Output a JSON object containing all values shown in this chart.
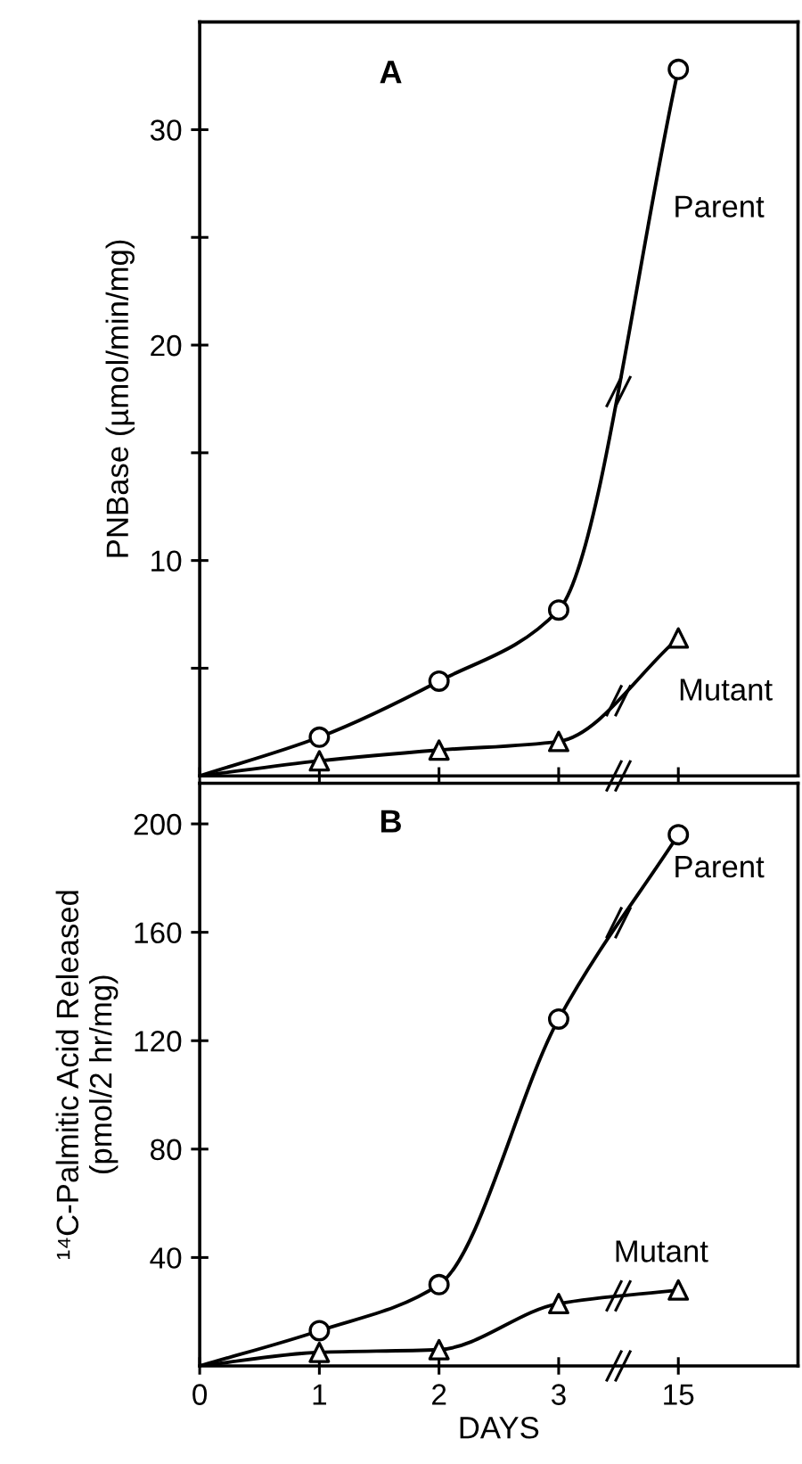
{
  "chart_data": [
    {
      "type": "line",
      "annotations": [
        "A"
      ],
      "ylabel": "PNBase (µmol/min/mg)",
      "categories": [
        "0",
        "1",
        "2",
        "3",
        "15"
      ],
      "ylim": [
        0,
        35
      ],
      "yticks": [
        {
          "value": 5,
          "label": null
        },
        10,
        {
          "value": 15,
          "label": null
        },
        20,
        {
          "value": 25,
          "label": null
        },
        30
      ],
      "tick_labels": "y",
      "grid": false,
      "series": [
        {
          "type": "line",
          "name": "Parent",
          "color": "#000000",
          "values": [
            0,
            1.8,
            4.4,
            7.7,
            32.8
          ]
        },
        {
          "type": "scatter",
          "color": "#000000",
          "marker": "circle",
          "x": [
            "1",
            "2",
            "3",
            "15"
          ],
          "values": [
            1.8,
            4.4,
            7.7,
            32.8
          ]
        },
        {
          "type": "line",
          "name": "Mutant",
          "color": "#000000",
          "values": [
            0,
            0.7,
            1.2,
            1.6,
            6.4
          ]
        },
        {
          "type": "scatter",
          "color": "#000000",
          "marker": "triangle",
          "x": [
            "1",
            "2",
            "3",
            "15"
          ],
          "values": [
            0.7,
            1.2,
            1.6,
            6.4
          ]
        }
      ]
    },
    {
      "type": "line",
      "annotations": [
        "B"
      ],
      "xlabel": "DAYS",
      "ylabel": "¹⁴C-Palmitic Acid Released\n(pmol/2 hr/mg)",
      "categories": [
        "0",
        "1",
        "2",
        "3",
        "15"
      ],
      "ylim": [
        0,
        215
      ],
      "yticks": [
        40,
        80,
        120,
        160,
        200
      ],
      "grid": false,
      "series": [
        {
          "type": "line",
          "name": "Parent",
          "color": "#000000",
          "values": [
            0,
            13,
            30,
            128,
            196
          ]
        },
        {
          "type": "scatter",
          "color": "#000000",
          "marker": "circle",
          "x": [
            "1",
            "2",
            "3",
            "15"
          ],
          "values": [
            13,
            30,
            128,
            196
          ]
        },
        {
          "type": "line",
          "name": "Mutant",
          "color": "#000000",
          "values": [
            0,
            5,
            6,
            23,
            28
          ]
        },
        {
          "type": "scatter",
          "color": "#000000",
          "marker": "triangle",
          "x": [
            "1",
            "2",
            "3",
            "15"
          ],
          "values": [
            5,
            6,
            23,
            28
          ]
        }
      ]
    }
  ]
}
